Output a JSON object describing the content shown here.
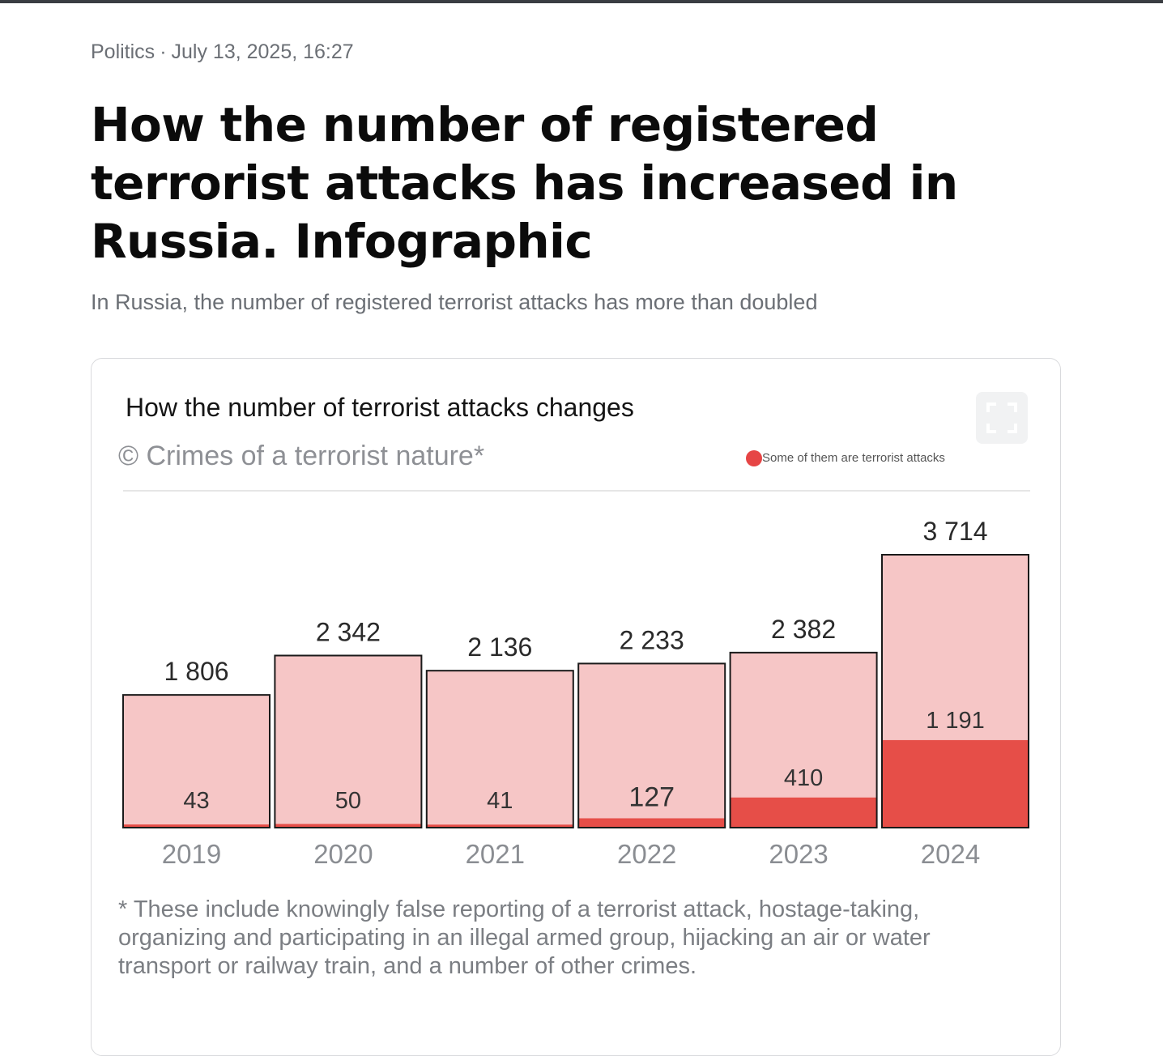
{
  "article": {
    "section": "Politics",
    "separator": "·",
    "datetime": "July 13, 2025, 16:27",
    "headline": "How the number of registered terrorist attacks has increased in Russia. Infographic",
    "lead": "In Russia, the number of registered terrorist attacks has more than doubled"
  },
  "infographic": {
    "fullscreen_icon": "fullscreen-icon",
    "footnote": "* These include knowingly false reporting of a terrorist attack, hostage-taking, organizing and participating in an illegal armed group, hijacking an air or water transport or railway train, and a number of other crimes."
  },
  "chart_data": {
    "type": "bar",
    "title": "How the number of terrorist attacks changes",
    "subtitle": "© Crimes of a terrorist nature*",
    "categories": [
      "2019",
      "2020",
      "2021",
      "2022",
      "2023",
      "2024"
    ],
    "series": [
      {
        "name": "",
        "values": [
          1806,
          2342,
          2136,
          2233,
          2382,
          3714
        ],
        "labels": [
          "1 806",
          "2 342",
          "2 136",
          "2 233",
          "2 382",
          "3 714"
        ],
        "color": "#f6c6c6"
      },
      {
        "name": "Some of them are terrorist attacks",
        "values": [
          43,
          50,
          41,
          127,
          410,
          1191
        ],
        "labels": [
          "43",
          "50",
          "41",
          "127",
          "410",
          "1 191"
        ],
        "color": "#e64e48"
      }
    ],
    "overlay": true,
    "ylim": [
      0,
      3714
    ],
    "legend_position": "top-right",
    "grid": false,
    "xlabel": "",
    "ylabel": ""
  }
}
